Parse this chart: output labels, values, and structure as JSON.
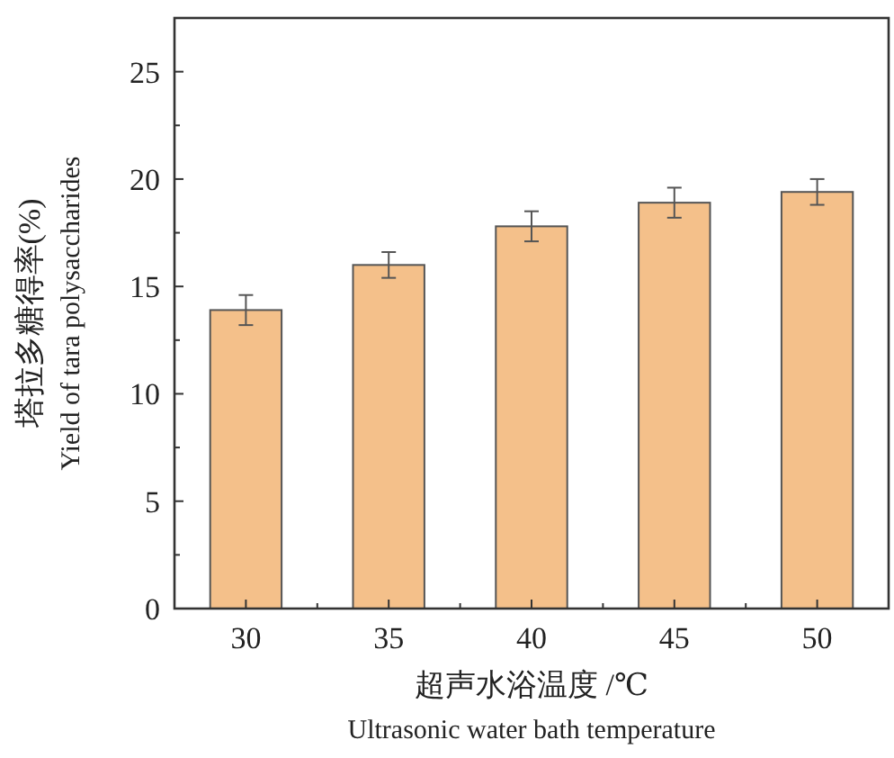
{
  "chart_data": {
    "type": "bar",
    "categories": [
      "30",
      "35",
      "40",
      "45",
      "50"
    ],
    "values": [
      13.9,
      16.0,
      17.8,
      18.9,
      19.4
    ],
    "errors": [
      0.7,
      0.6,
      0.7,
      0.7,
      0.6
    ],
    "color": "#f4c08a",
    "xlabel": "超声水浴温度 /℃\nUltrasonic water bath temperature",
    "ylabel": "塔拉多糖得率(%)\nYield of tara polysaccharides",
    "ylim": [
      0,
      27.5
    ],
    "yticks": [
      0,
      {
        "value": 2.5,
        "label": null
      },
      5,
      {
        "value": 7.5,
        "label": null
      },
      10,
      {
        "value": 12.5,
        "label": null
      },
      15,
      {
        "value": 17.5,
        "label": null
      },
      20,
      {
        "value": 22.5,
        "label": null
      },
      25
    ],
    "grid": false
  }
}
